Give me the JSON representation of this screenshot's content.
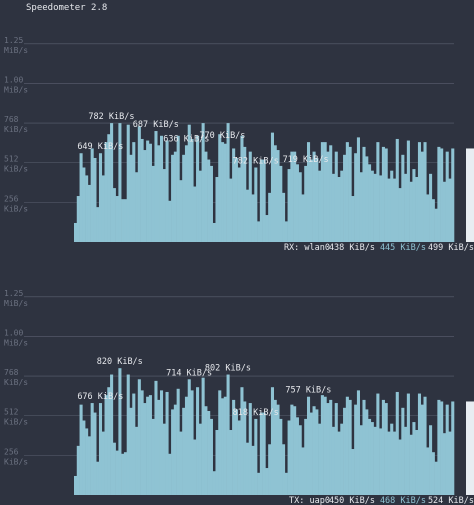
{
  "app": {
    "title": "Speedometer 2.8"
  },
  "colors": {
    "background": "#2e3340",
    "bar": "#8fc3d3",
    "grid": "#5b6170",
    "tick": "#6b7180",
    "label": "#e6e8ec",
    "highlight": "#8fc3d3"
  },
  "chart_data": [
    {
      "type": "bar",
      "interface": "RX: wlan0",
      "ylabel": "",
      "ylim": [
        0,
        1.35
      ],
      "y_ticks": [
        {
          "value": 0.25,
          "label": [
            "256",
            "KiB/s"
          ]
        },
        {
          "value": 0.5,
          "label": [
            "512",
            "KiB/s"
          ]
        },
        {
          "value": 0.75,
          "label": [
            "768",
            "KiB/s"
          ]
        },
        {
          "value": 1.0,
          "label": [
            "1.00",
            "MiB/s"
          ]
        },
        {
          "value": 1.25,
          "label": [
            "1.25",
            "MiB/s"
          ]
        }
      ],
      "values": [
        0.12,
        0.29,
        0.56,
        0.47,
        0.42,
        0.36,
        0.59,
        0.53,
        0.22,
        0.56,
        0.42,
        0.63,
        0.68,
        0.75,
        0.34,
        0.29,
        0.75,
        0.27,
        0.27,
        0.74,
        0.55,
        0.63,
        0.44,
        0.73,
        0.65,
        0.58,
        0.64,
        0.62,
        0.48,
        0.7,
        0.61,
        0.67,
        0.46,
        0.64,
        0.26,
        0.55,
        0.57,
        0.67,
        0.39,
        0.55,
        0.61,
        0.74,
        0.65,
        0.35,
        0.67,
        0.45,
        0.75,
        0.57,
        0.52,
        0.48,
        0.12,
        0.41,
        0.68,
        0.63,
        0.62,
        0.75,
        0.4,
        0.59,
        0.53,
        0.47,
        0.67,
        0.6,
        0.33,
        0.57,
        0.3,
        0.47,
        0.13,
        0.52,
        0.52,
        0.17,
        0.31,
        0.69,
        0.61,
        0.58,
        0.48,
        0.31,
        0.13,
        0.46,
        0.57,
        0.57,
        0.49,
        0.44,
        0.3,
        0.48,
        0.63,
        0.52,
        0.57,
        0.53,
        0.45,
        0.63,
        0.63,
        0.57,
        0.61,
        0.43,
        0.57,
        0.41,
        0.45,
        0.55,
        0.63,
        0.6,
        0.29,
        0.56,
        0.66,
        0.44,
        0.6,
        0.54,
        0.49,
        0.45,
        0.43,
        0.63,
        0.42,
        0.6,
        0.59,
        0.4,
        0.45,
        0.4,
        0.65,
        0.34,
        0.55,
        0.43,
        0.64,
        0.38,
        0.46,
        0.41,
        0.63,
        0.57,
        0.63,
        0.3,
        0.43,
        0.27,
        0.21,
        0.6,
        0.59,
        0.38,
        0.57,
        0.4,
        0.59
      ],
      "peaks": [
        {
          "label": "782 KiB/s",
          "index": 13
        },
        {
          "label": "649 KiB/s",
          "index": 9
        },
        {
          "label": "687 KiB/s",
          "index": 29
        },
        {
          "label": "636 KiB/s",
          "index": 40
        },
        {
          "label": "770 KiB/s",
          "index": 53
        },
        {
          "label": "782 KiB/s",
          "index": 65
        },
        {
          "label": "719 KiB/s",
          "index": 83
        }
      ],
      "status": {
        "name": "RX: wlan0",
        "current": "438 KiB/s",
        "average": "445 KiB/s",
        "max": "499 KiB/s"
      }
    },
    {
      "type": "bar",
      "interface": "TX: uap0",
      "ylabel": "",
      "ylim": [
        0,
        1.35
      ],
      "y_ticks": [
        {
          "value": 0.25,
          "label": [
            "256",
            "KiB/s"
          ]
        },
        {
          "value": 0.5,
          "label": [
            "512",
            "KiB/s"
          ]
        },
        {
          "value": 0.75,
          "label": [
            "768",
            "KiB/s"
          ]
        },
        {
          "value": 1.0,
          "label": [
            "1.00",
            "MiB/s"
          ]
        },
        {
          "value": 1.25,
          "label": [
            "1.25",
            "MiB/s"
          ]
        }
      ],
      "values": [
        0.12,
        0.31,
        0.57,
        0.47,
        0.42,
        0.37,
        0.58,
        0.52,
        0.21,
        0.58,
        0.4,
        0.63,
        0.68,
        0.76,
        0.33,
        0.28,
        0.8,
        0.26,
        0.27,
        0.76,
        0.55,
        0.64,
        0.43,
        0.73,
        0.66,
        0.58,
        0.62,
        0.63,
        0.48,
        0.72,
        0.6,
        0.66,
        0.45,
        0.65,
        0.26,
        0.54,
        0.57,
        0.67,
        0.4,
        0.55,
        0.62,
        0.73,
        0.66,
        0.35,
        0.68,
        0.45,
        0.74,
        0.56,
        0.53,
        0.48,
        0.15,
        0.41,
        0.66,
        0.61,
        0.62,
        0.76,
        0.41,
        0.6,
        0.54,
        0.47,
        0.68,
        0.59,
        0.33,
        0.58,
        0.31,
        0.48,
        0.14,
        0.52,
        0.52,
        0.17,
        0.32,
        0.68,
        0.6,
        0.57,
        0.48,
        0.32,
        0.14,
        0.47,
        0.57,
        0.56,
        0.49,
        0.44,
        0.3,
        0.48,
        0.62,
        0.52,
        0.56,
        0.54,
        0.45,
        0.63,
        0.62,
        0.58,
        0.6,
        0.43,
        0.58,
        0.4,
        0.45,
        0.55,
        0.62,
        0.6,
        0.29,
        0.57,
        0.66,
        0.44,
        0.6,
        0.54,
        0.48,
        0.46,
        0.43,
        0.64,
        0.42,
        0.6,
        0.58,
        0.4,
        0.45,
        0.4,
        0.65,
        0.35,
        0.55,
        0.43,
        0.64,
        0.38,
        0.46,
        0.41,
        0.64,
        0.57,
        0.62,
        0.3,
        0.44,
        0.27,
        0.21,
        0.6,
        0.59,
        0.39,
        0.57,
        0.4,
        0.59
      ],
      "peaks": [
        {
          "label": "820 KiB/s",
          "index": 16
        },
        {
          "label": "676 KiB/s",
          "index": 9
        },
        {
          "label": "714 KiB/s",
          "index": 41
        },
        {
          "label": "802 KiB/s",
          "index": 55
        },
        {
          "label": "818 KiB/s",
          "index": 65
        },
        {
          "label": "757 KiB/s",
          "index": 84
        }
      ],
      "status": {
        "name": "TX: uap0",
        "current": "450 KiB/s",
        "average": "468 KiB/s",
        "max": "524 KiB/s"
      }
    }
  ]
}
